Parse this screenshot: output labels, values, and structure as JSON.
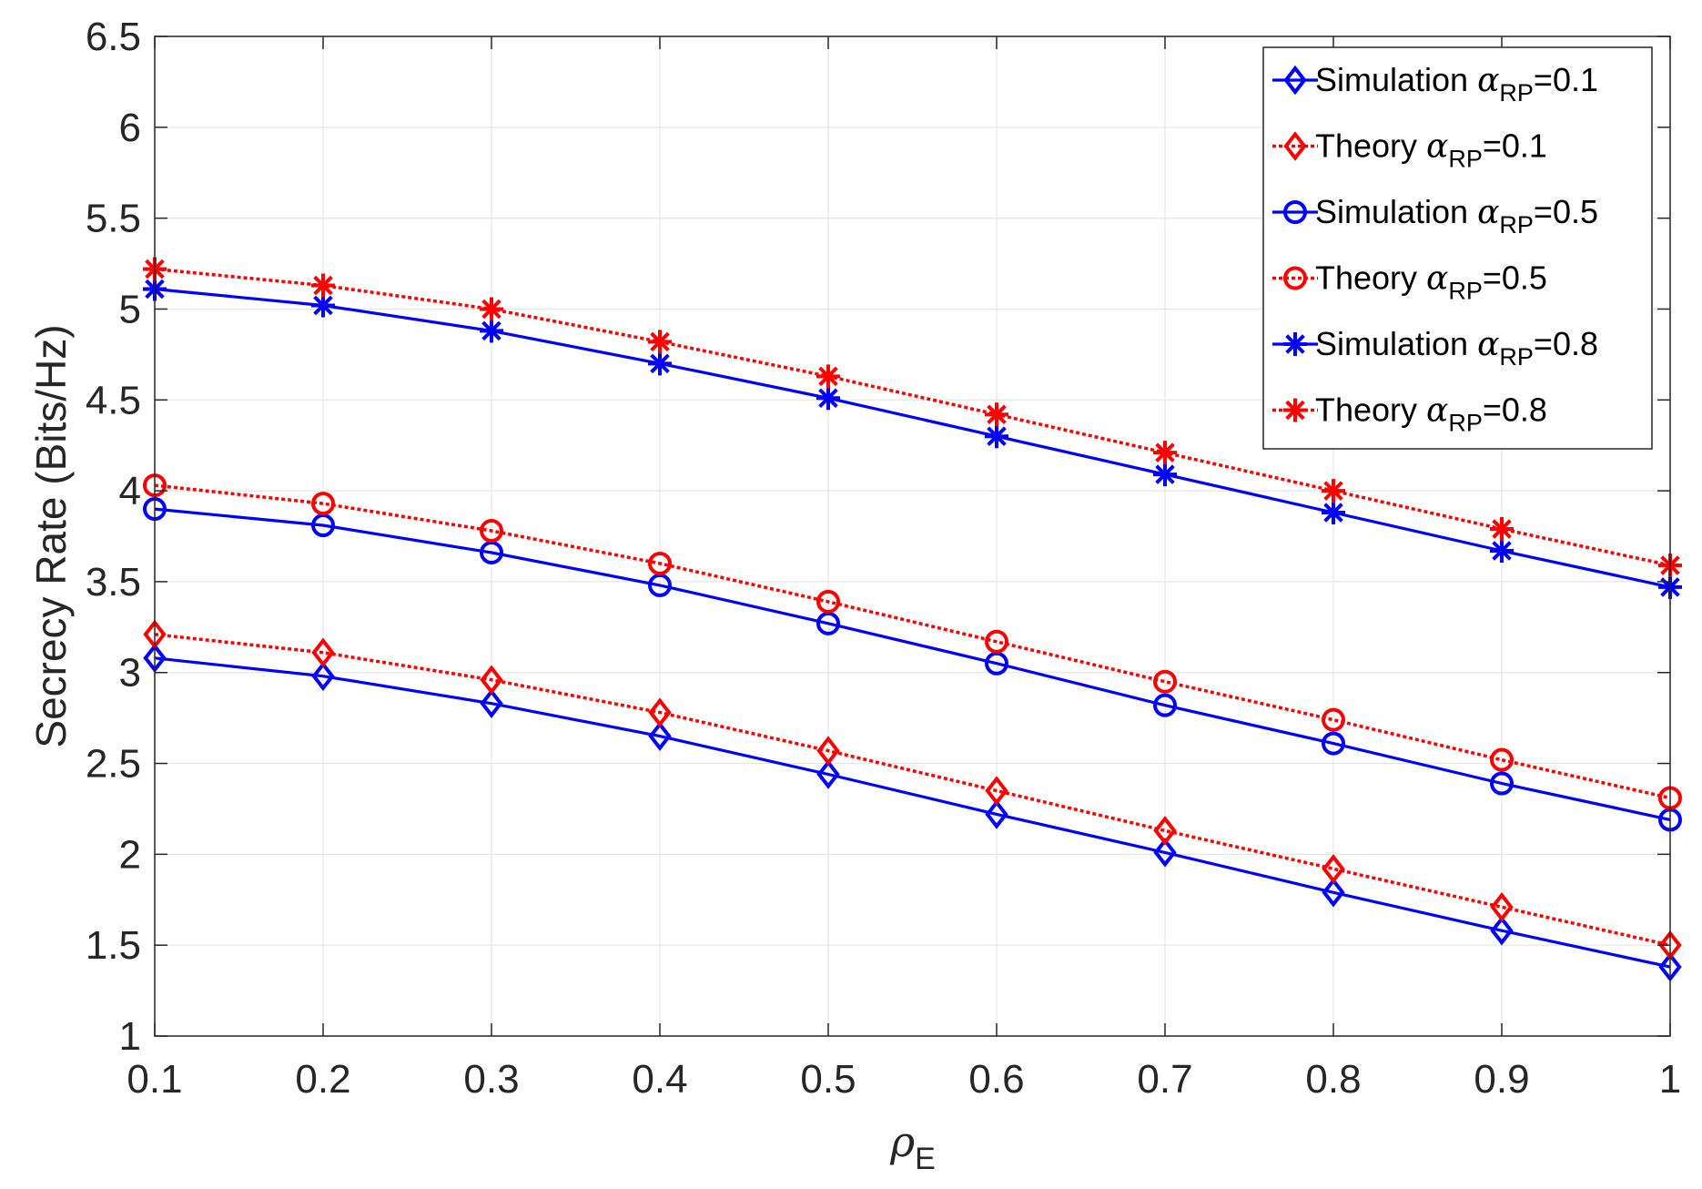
{
  "chart_data": {
    "type": "line",
    "title": "",
    "xlabel": {
      "symbol": "ρ",
      "subscript": "E"
    },
    "ylabel": "Secrecy Rate (Bits/Hz)",
    "xlim": [
      0.1,
      1
    ],
    "ylim": [
      1,
      6.5
    ],
    "xticks": [
      0.1,
      0.2,
      0.3,
      0.4,
      0.5,
      0.6,
      0.7,
      0.8,
      0.9,
      1
    ],
    "xtick_labels": [
      "0.1",
      "0.2",
      "0.3",
      "0.4",
      "0.5",
      "0.6",
      "0.7",
      "0.8",
      "0.9",
      "1"
    ],
    "yticks": [
      1,
      1.5,
      2,
      2.5,
      3,
      3.5,
      4,
      4.5,
      5,
      5.5,
      6,
      6.5
    ],
    "ytick_labels": [
      "1",
      "1.5",
      "2",
      "2.5",
      "3",
      "3.5",
      "4",
      "4.5",
      "5",
      "5.5",
      "6",
      "6.5"
    ],
    "grid": true,
    "legend_position": "top-right",
    "x": [
      0.1,
      0.2,
      0.3,
      0.4,
      0.5,
      0.6,
      0.7,
      0.8,
      0.9,
      1.0
    ],
    "series": [
      {
        "name": "Simulation α_RP=0.1",
        "label": "Simulation",
        "alpha_symbol": "α",
        "alpha_sub": "RP",
        "alpha_value": "=0.1",
        "color": "#0000ff",
        "style": "solid",
        "marker": "diamond",
        "values": [
          3.08,
          2.98,
          2.83,
          2.65,
          2.44,
          2.22,
          2.01,
          1.79,
          1.58,
          1.38
        ]
      },
      {
        "name": "Theory α_RP=0.1",
        "label": "Theory",
        "alpha_symbol": "α",
        "alpha_sub": "RP",
        "alpha_value": "=0.1",
        "color": "#ff0000",
        "style": "dotted",
        "marker": "diamond",
        "values": [
          3.21,
          3.11,
          2.96,
          2.78,
          2.57,
          2.35,
          2.13,
          1.92,
          1.71,
          1.5
        ]
      },
      {
        "name": "Simulation α_RP=0.5",
        "label": "Simulation",
        "alpha_symbol": "α",
        "alpha_sub": "RP",
        "alpha_value": "=0.5",
        "color": "#0000ff",
        "style": "solid",
        "marker": "circle",
        "values": [
          3.9,
          3.81,
          3.66,
          3.48,
          3.27,
          3.05,
          2.82,
          2.61,
          2.39,
          2.19
        ]
      },
      {
        "name": "Theory α_RP=0.5",
        "label": "Theory",
        "alpha_symbol": "α",
        "alpha_sub": "RP",
        "alpha_value": "=0.5",
        "color": "#ff0000",
        "style": "dotted",
        "marker": "circle",
        "values": [
          4.03,
          3.93,
          3.78,
          3.6,
          3.39,
          3.17,
          2.95,
          2.74,
          2.52,
          2.31
        ]
      },
      {
        "name": "Simulation α_RP=0.8",
        "label": "Simulation",
        "alpha_symbol": "α",
        "alpha_sub": "RP",
        "alpha_value": "=0.8",
        "color": "#0000ff",
        "style": "solid",
        "marker": "asterisk",
        "values": [
          5.11,
          5.02,
          4.88,
          4.7,
          4.51,
          4.3,
          4.09,
          3.88,
          3.67,
          3.47
        ]
      },
      {
        "name": "Theory α_RP=0.8",
        "label": "Theory",
        "alpha_symbol": "α",
        "alpha_sub": "RP",
        "alpha_value": "=0.8",
        "color": "#ff0000",
        "style": "dotted",
        "marker": "asterisk",
        "values": [
          5.22,
          5.13,
          5.0,
          4.82,
          4.63,
          4.42,
          4.21,
          4.0,
          3.79,
          3.59
        ]
      }
    ]
  }
}
